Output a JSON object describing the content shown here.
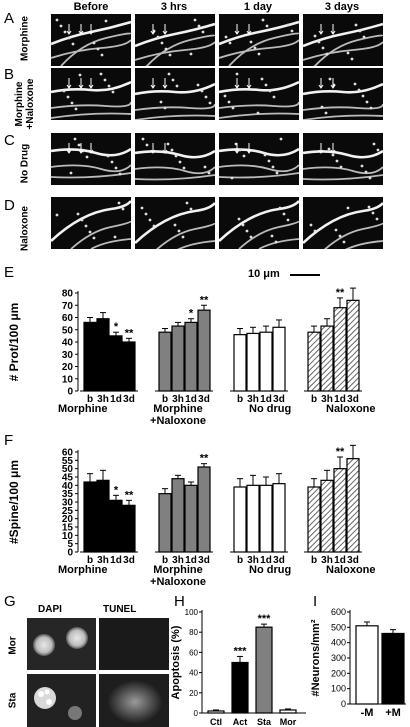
{
  "panels": {
    "A": "A",
    "B": "B",
    "C": "C",
    "D": "D",
    "E": "E",
    "F": "F",
    "G": "G",
    "H": "H",
    "I": "I"
  },
  "micrograph_columns": [
    "Before",
    "3 hrs",
    "1 day",
    "3 days"
  ],
  "micrograph_rows": [
    "Morphine",
    "Morphine\n+Naloxone",
    "No Drug",
    "Naloxone"
  ],
  "micrograph_row_lines": {
    "row_a": [
      "Morphine"
    ],
    "row_b": [
      "Morphine",
      "+Naloxone"
    ],
    "row_c": [
      "No Drug"
    ],
    "row_d": [
      "Naloxone"
    ]
  },
  "scale_bar": "10 μm",
  "group_labels": {
    "morphine": "Morphine",
    "morphine_naloxone_line1": "Morphine",
    "morphine_naloxone_line2": "+Naloxone",
    "no_drug": "No drug",
    "naloxone": "Naloxone"
  },
  "timepoints": [
    "b",
    "3h",
    "1d",
    "3d"
  ],
  "panel_g": {
    "col1": "DAPI",
    "col2": "TUNEL",
    "row1": "Mor",
    "row2": "Sta"
  },
  "colors": {
    "black": "#000000",
    "gray": "#808080",
    "white": "#ffffff",
    "hatch": "#9a9a9a"
  },
  "chart_data": [
    {
      "id": "E",
      "type": "bar",
      "ylabel": "# Prot/100 μm",
      "ylim": [
        0,
        80
      ],
      "yticks": [
        0,
        10,
        20,
        30,
        40,
        50,
        60,
        70,
        80
      ],
      "categories": [
        "b",
        "3h",
        "1d",
        "3d"
      ],
      "series": [
        {
          "name": "Morphine",
          "fill": "black",
          "values": [
            56,
            59,
            45,
            40
          ],
          "errors": [
            4,
            5,
            3,
            3
          ],
          "marks": [
            "",
            "",
            "*",
            "**"
          ]
        },
        {
          "name": "Morphine +Naloxone",
          "fill": "gray",
          "values": [
            48,
            53,
            56,
            66
          ],
          "errors": [
            3,
            3,
            3,
            4
          ],
          "marks": [
            "",
            "",
            "*",
            "**"
          ]
        },
        {
          "name": "No drug",
          "fill": "white",
          "values": [
            46,
            47,
            48,
            52
          ],
          "errors": [
            5,
            5,
            5,
            6
          ],
          "marks": [
            "",
            "",
            "",
            ""
          ]
        },
        {
          "name": "Naloxone",
          "fill": "hatch",
          "values": [
            48,
            53,
            68,
            74
          ],
          "errors": [
            5,
            6,
            8,
            10
          ],
          "marks": [
            "",
            "",
            "**",
            "**"
          ]
        }
      ]
    },
    {
      "id": "F",
      "type": "bar",
      "ylabel": "#Spine/100 μm",
      "ylim": [
        0,
        60
      ],
      "yticks": [
        0,
        5,
        10,
        15,
        20,
        25,
        30,
        35,
        40,
        45,
        50,
        55,
        60
      ],
      "categories": [
        "b",
        "3h",
        "1d",
        "3d"
      ],
      "series": [
        {
          "name": "Morphine",
          "fill": "black",
          "values": [
            42,
            43,
            31,
            28
          ],
          "errors": [
            5,
            6,
            3,
            3
          ],
          "marks": [
            "",
            "",
            "*",
            "**"
          ]
        },
        {
          "name": "Morphine +Naloxone",
          "fill": "gray",
          "values": [
            35,
            44,
            40,
            51
          ],
          "errors": [
            3,
            2,
            2,
            2
          ],
          "marks": [
            "",
            "",
            "",
            "**"
          ]
        },
        {
          "name": "No drug",
          "fill": "white",
          "values": [
            39,
            40,
            40,
            41
          ],
          "errors": [
            5,
            6,
            5,
            6
          ],
          "marks": [
            "",
            "",
            "",
            ""
          ]
        },
        {
          "name": "Naloxone",
          "fill": "hatch",
          "values": [
            39,
            43,
            50,
            56
          ],
          "errors": [
            5,
            6,
            7,
            8
          ],
          "marks": [
            "",
            "",
            "**",
            "**"
          ]
        }
      ]
    },
    {
      "id": "H",
      "type": "bar",
      "ylabel": "Apoptosis (%)",
      "ylim": [
        0,
        100
      ],
      "yticks": [
        0,
        20,
        40,
        60,
        80,
        100
      ],
      "categories": [
        "Ctl",
        "Act",
        "Sta",
        "Mor"
      ],
      "values": [
        2,
        50,
        85,
        3
      ],
      "errors": [
        1,
        6,
        3,
        1
      ],
      "fills": [
        "white",
        "black",
        "gray",
        "white"
      ],
      "marks": [
        "",
        "***",
        "***",
        ""
      ]
    },
    {
      "id": "I",
      "type": "bar",
      "ylabel": "#Neurons/mm²",
      "ylim": [
        0,
        600
      ],
      "yticks": [
        0,
        100,
        200,
        300,
        400,
        500,
        600
      ],
      "categories": [
        "-M",
        "+M"
      ],
      "values": [
        510,
        460
      ],
      "errors": [
        25,
        25
      ],
      "fills": [
        "white",
        "black"
      ]
    }
  ]
}
